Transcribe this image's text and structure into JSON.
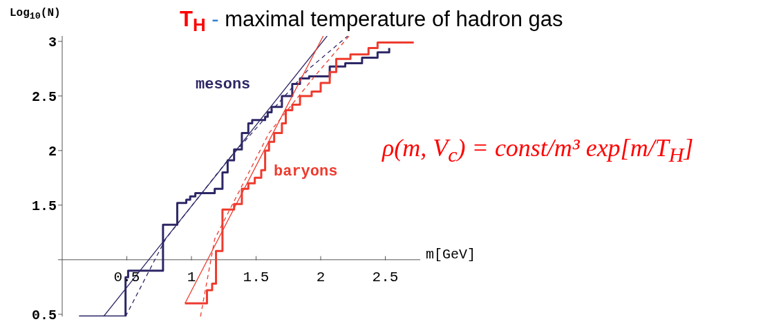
{
  "chart_data": {
    "type": "step",
    "title": "T$_{H}$ - maximal temperature of hadron gas",
    "xlabel": "m[GeV]",
    "ylabel": "Log$_{10}$(N)",
    "annotations": [
      "ρ(m, V$_{c}$) = const/m³ exp[m/T$_{H}$]"
    ],
    "xlim": [
      0,
      2.77
    ],
    "ylim": [
      0.48,
      3.05
    ],
    "xticks": [
      0.5,
      1,
      1.5,
      2,
      2.5
    ],
    "yticks": [
      0.5,
      {
        "value": 1,
        "label": null
      },
      1.5,
      2,
      2.5,
      3
    ],
    "legend": false,
    "grid": false,
    "series": [
      {
        "name": "mesons",
        "type": "step",
        "color": "#2d2766",
        "x": [
          0.13,
          0.49,
          0.51,
          0.78,
          0.89,
          0.96,
          0.99,
          1.03,
          1.18,
          1.24,
          1.28,
          1.33,
          1.39,
          1.44,
          1.47,
          1.57,
          1.59,
          1.62,
          1.7,
          1.78,
          1.84,
          1.91,
          2.07,
          2.19,
          2.32,
          2.44,
          2.53
        ],
        "values": [
          0.48,
          0.84,
          0.9,
          1.32,
          1.52,
          1.55,
          1.58,
          1.61,
          1.65,
          1.8,
          1.91,
          2.01,
          2.16,
          2.25,
          2.28,
          2.31,
          2.35,
          2.4,
          2.5,
          2.61,
          2.66,
          2.68,
          2.77,
          2.8,
          2.85,
          2.9,
          2.94
        ]
      },
      {
        "name": "baryons",
        "type": "step",
        "color": "#ee3b2e",
        "x": [
          0.95,
          1.12,
          1.16,
          1.19,
          1.24,
          1.33,
          1.39,
          1.44,
          1.49,
          1.54,
          1.57,
          1.6,
          1.64,
          1.7,
          1.73,
          1.78,
          1.84,
          1.93,
          2.0,
          2.07,
          2.12,
          2.23,
          2.37,
          2.44,
          2.72
        ],
        "values": [
          0.6,
          0.72,
          0.78,
          1.08,
          1.46,
          1.51,
          1.65,
          1.7,
          1.75,
          1.82,
          2.0,
          2.08,
          2.16,
          2.25,
          2.37,
          2.42,
          2.5,
          2.54,
          2.62,
          2.72,
          2.84,
          2.88,
          2.94,
          2.99,
          2.99
        ]
      },
      {
        "type": "line",
        "color": "#2d2766",
        "line_style": "solid",
        "x": [
          0.32,
          2.05
        ],
        "values": [
          0.48,
          3.05
        ]
      },
      {
        "type": "line",
        "color": "#2d2766",
        "line_style": "dashed",
        "x": [
          0.49,
          0.8,
          1.28,
          1.91,
          2.21
        ],
        "values": [
          0.48,
          1.19,
          1.91,
          2.75,
          3.05
        ]
      },
      {
        "type": "line",
        "color": "#ee3b2e",
        "line_style": "solid",
        "x": [
          0.95,
          2.02
        ],
        "values": [
          0.6,
          3.05
        ]
      },
      {
        "type": "line",
        "color": "#ee3b2e",
        "line_style": "dashed",
        "x": [
          1.07,
          1.18,
          1.6,
          1.96,
          2.22
        ],
        "values": [
          0.48,
          1.19,
          2.16,
          2.69,
          3.05
        ]
      }
    ]
  }
}
